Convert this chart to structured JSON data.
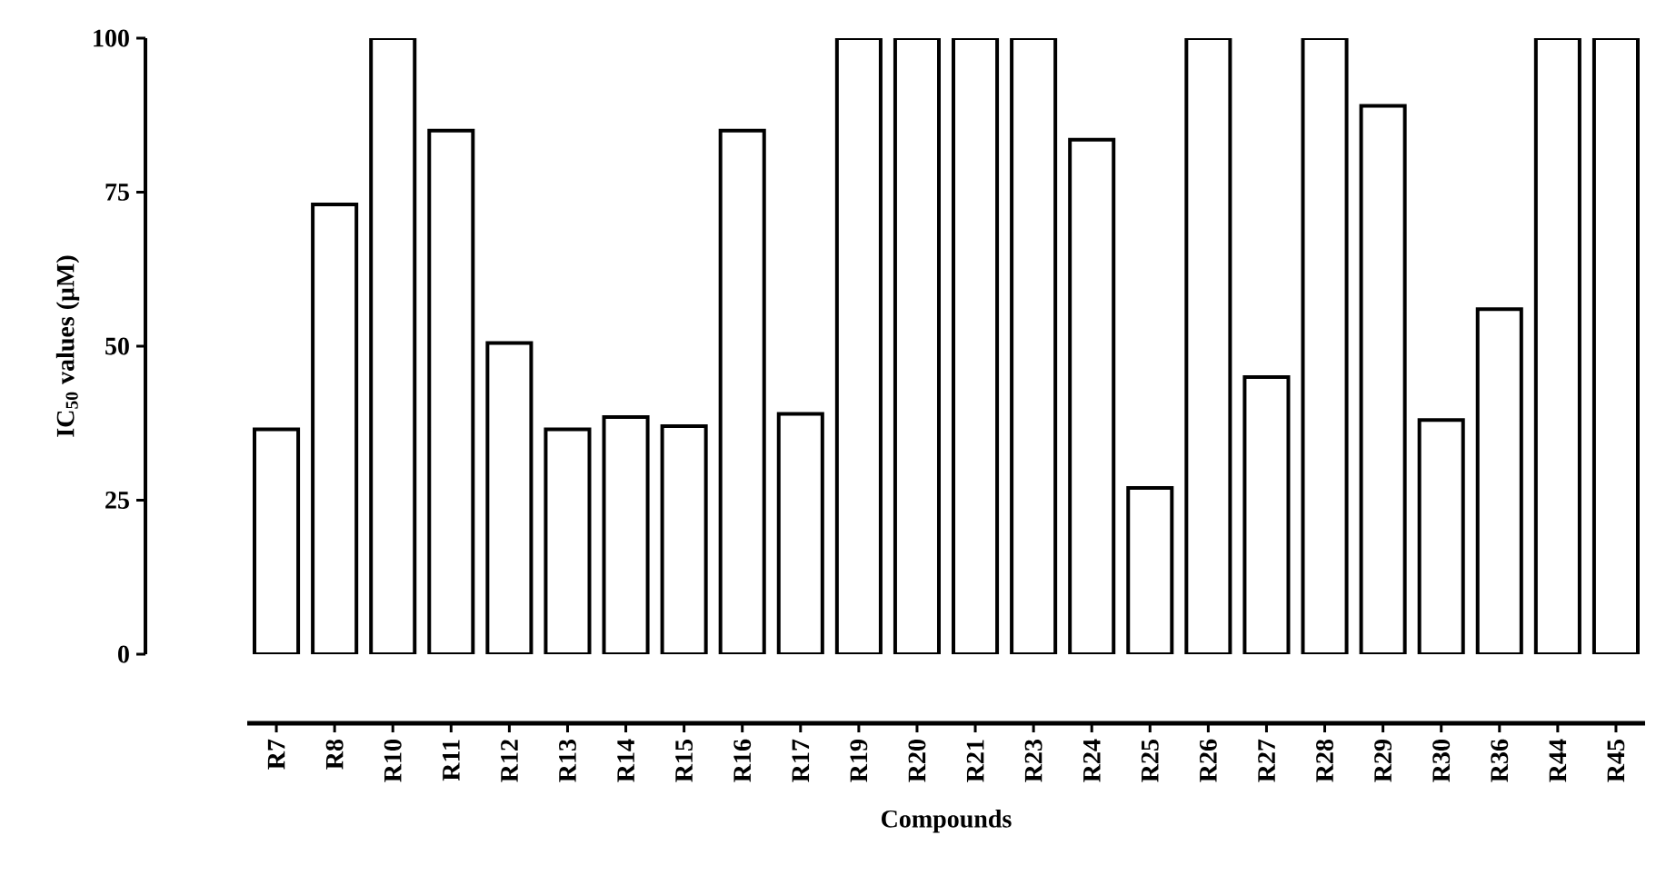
{
  "chart_data": {
    "type": "bar",
    "xlabel": "Compounds",
    "ylabel": "IC$_{50}$ values (μM)",
    "categories": [
      "R7",
      "R8",
      "R10",
      "R11",
      "R12",
      "R13",
      "R14",
      "R15",
      "R16",
      "R17",
      "R19",
      "R20",
      "R21",
      "R23",
      "R24",
      "R25",
      "R26",
      "R27",
      "R28",
      "R29",
      "R30",
      "R36",
      "R44",
      "R45"
    ],
    "values": [
      36.5,
      73,
      100,
      85,
      50.5,
      36.5,
      38.5,
      37,
      85,
      39,
      100,
      100,
      100,
      100,
      83.5,
      27,
      100,
      45,
      100,
      89,
      38,
      56,
      100,
      100
    ],
    "color": "#ffffff",
    "ylim": [
      0,
      100
    ],
    "yticks": [
      0,
      25,
      50,
      75,
      100
    ]
  }
}
